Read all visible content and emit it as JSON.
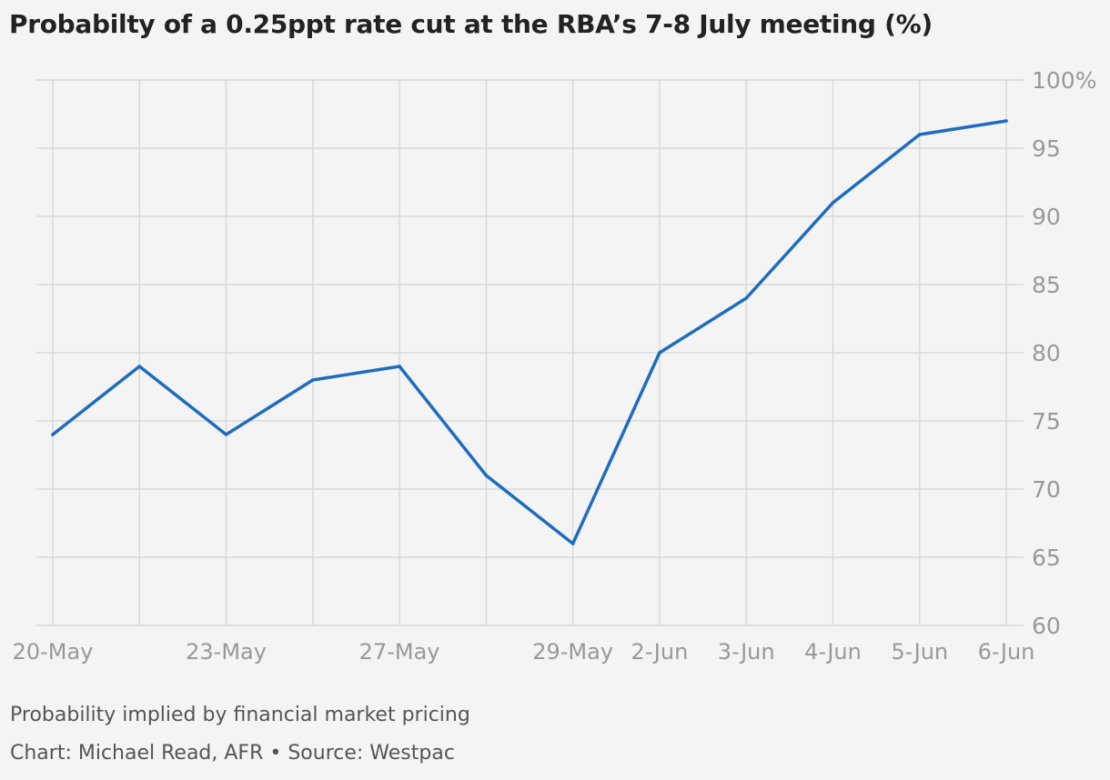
{
  "title": "Probabilty of a 0.25ppt rate cut at the RBA’s 7-8 July meeting (%)",
  "subtitle": "Probability implied by financial market pricing",
  "credit": "Chart: Michael Read, AFR • Source: Westpac",
  "colors": {
    "line": "#1f6cbf",
    "grid": "#d9d9d9",
    "tick_text": "#999999",
    "background": "#f4f4f4"
  },
  "chart_data": {
    "type": "line",
    "title": "Probabilty of a 0.25ppt rate cut at the RBA’s 7-8 July meeting (%)",
    "xlabel": "",
    "ylabel": "",
    "ylim": [
      60,
      100
    ],
    "y_ticks": [
      "60",
      "65",
      "70",
      "75",
      "80",
      "85",
      "90",
      "95",
      "100%"
    ],
    "x_tick_labels": [
      "20-May",
      "",
      "23-May",
      "",
      "27-May",
      "",
      "29-May",
      "2-Jun",
      "3-Jun",
      "4-Jun",
      "5-Jun",
      "6-Jun"
    ],
    "grid": true,
    "y_axis_position": "right",
    "series": [
      {
        "values": [
          74,
          79,
          74,
          78,
          79,
          71,
          66,
          80,
          84,
          91,
          96,
          97
        ]
      }
    ]
  }
}
